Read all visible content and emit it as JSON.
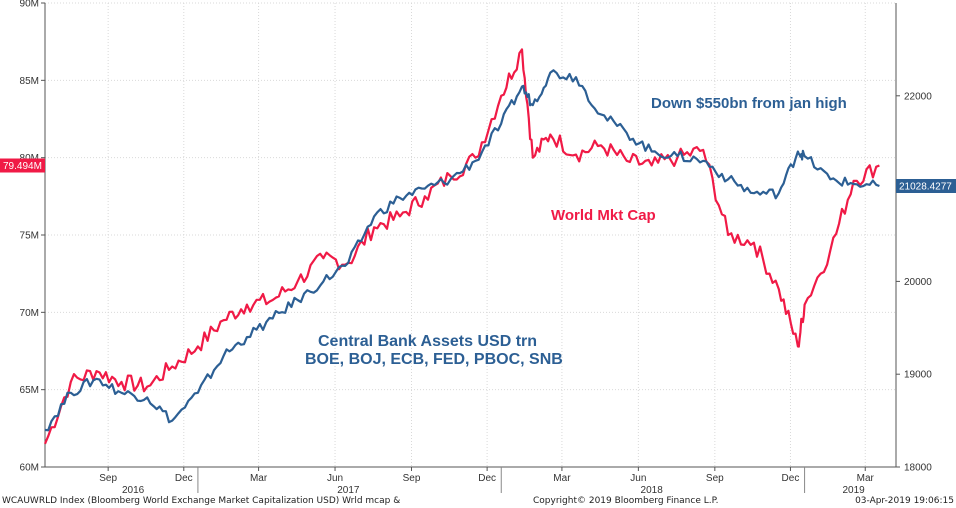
{
  "chart_data": {
    "type": "line",
    "x_dates": [
      "2016-07-01",
      "2016-08-01",
      "2016-09-01",
      "2016-10-01",
      "2016-11-01",
      "2016-12-01",
      "2017-01-01",
      "2017-02-01",
      "2017-03-01",
      "2017-04-01",
      "2017-05-01",
      "2017-06-01",
      "2017-07-01",
      "2017-08-01",
      "2017-09-01",
      "2017-10-01",
      "2017-11-01",
      "2017-12-01",
      "2018-01-01",
      "2018-01-26",
      "2018-02-08",
      "2018-03-01",
      "2018-04-01",
      "2018-05-01",
      "2018-06-01",
      "2018-07-01",
      "2018-08-01",
      "2018-09-01",
      "2018-10-01",
      "2018-11-01",
      "2018-12-01",
      "2018-12-24",
      "2019-01-01",
      "2019-02-01",
      "2019-03-01",
      "2019-04-01"
    ],
    "series": [
      {
        "name": "World Mkt Cap",
        "color": "#f01a46",
        "axis": "left",
        "values": [
          61.5,
          65.5,
          66.2,
          65.5,
          65.2,
          66.5,
          67.8,
          69.5,
          70.5,
          70.8,
          72.0,
          73.5,
          73.2,
          75.5,
          76.2,
          77.5,
          78.8,
          80.0,
          84.0,
          87.0,
          80.0,
          81.5,
          80.2,
          80.8,
          79.8,
          79.5,
          80.0,
          80.5,
          75.0,
          74.5,
          71.5,
          67.8,
          70.5,
          74.0,
          78.5,
          79.494
        ]
      },
      {
        "name": "Central Bank Assets USD trn",
        "color": "#2c5f94",
        "axis": "right",
        "values": [
          18400,
          18800,
          18950,
          18800,
          18750,
          18500,
          18800,
          19200,
          19400,
          19600,
          19800,
          20000,
          20200,
          20700,
          20900,
          21000,
          21100,
          21300,
          21700,
          22100,
          21900,
          22250,
          22200,
          21800,
          21600,
          21400,
          21350,
          21300,
          21100,
          20950,
          20950,
          21400,
          21350,
          21100,
          21050,
          21028.4277
        ]
      }
    ],
    "x_tick_labels": [
      "Sep",
      "Dec",
      "Mar",
      "Jun",
      "Sep",
      "Dec",
      "Mar",
      "Jun",
      "Sep",
      "Dec",
      "Mar"
    ],
    "x_tick_dates": [
      "2016-09-15",
      "2016-12-15",
      "2017-03-15",
      "2017-06-15",
      "2017-09-15",
      "2017-12-15",
      "2018-03-15",
      "2018-06-15",
      "2018-09-15",
      "2018-12-15",
      "2019-03-15"
    ],
    "year_labels": [
      {
        "label": "2016",
        "date": "2016-10-15"
      },
      {
        "label": "2017",
        "date": "2017-07-01"
      },
      {
        "label": "2018",
        "date": "2018-07-01"
      },
      {
        "label": "2019",
        "date": "2019-03-01"
      }
    ],
    "year_dividers": [
      "2017-01-01",
      "2018-01-01",
      "2019-01-01"
    ],
    "x_range": [
      "2016-07-01",
      "2019-04-21"
    ],
    "left_axis": {
      "range": [
        60,
        90
      ],
      "ticks": [
        60,
        65,
        70,
        75,
        80,
        85,
        90
      ],
      "tick_labels": [
        "60M",
        "65M",
        "70M",
        "75M",
        "80M",
        "85M",
        "90M"
      ],
      "last_value_label": "79.494M",
      "last_value": 79.494
    },
    "right_axis": {
      "range": [
        18000,
        23000
      ],
      "ticks": [
        18000,
        19000,
        20000,
        21000,
        22000
      ],
      "tick_labels": [
        "18000",
        "19000",
        "20000",
        "21000",
        "22000"
      ],
      "last_value_label": "21028.4277",
      "last_value": 21028.4277
    },
    "annotations": [
      {
        "text": "Down $550bn from jan high",
        "color": "#2c5f94"
      },
      {
        "text": "World Mkt Cap",
        "color": "#f01a46"
      },
      {
        "text": "Central Bank Assets USD trn",
        "color": "#2c5f94"
      },
      {
        "text": "BOE, BOJ, ECB, FED, PBOC, SNB",
        "color": "#2c5f94"
      }
    ],
    "footer": {
      "left": "WCAUWRLD Index (Bloomberg World Exchange Market Capitalization USD) Wrld mcap &",
      "center": "Copyright© 2019 Bloomberg Finance L.P.",
      "right": "03-Apr-2019 19:06:15"
    }
  }
}
